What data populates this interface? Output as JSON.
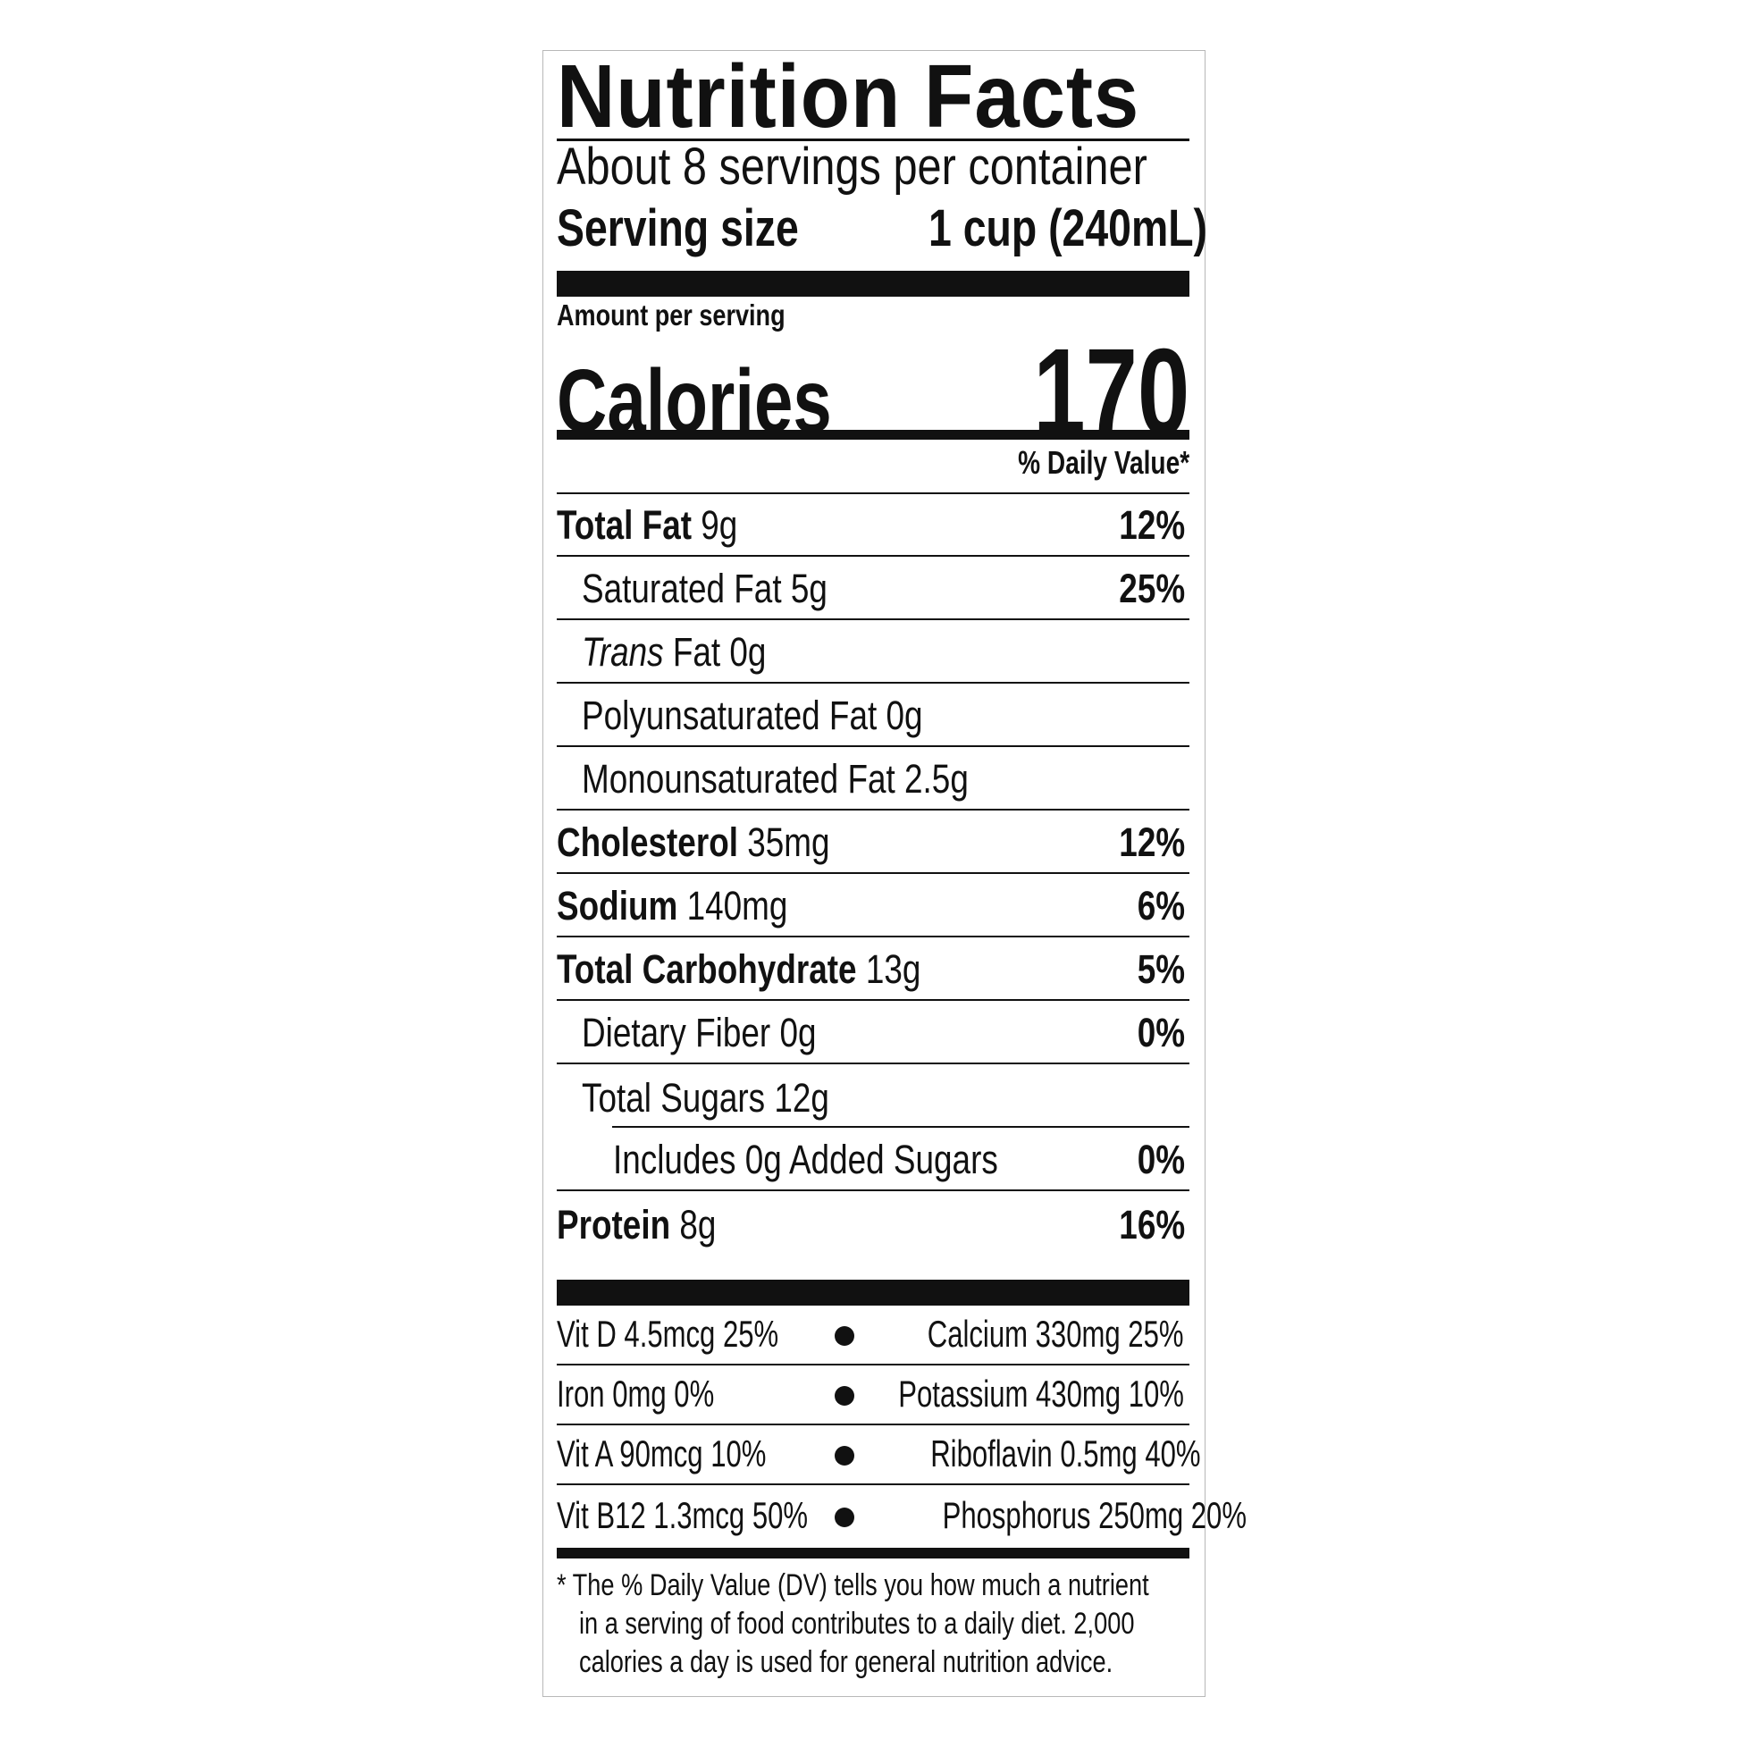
{
  "title": "Nutrition Facts",
  "servings_per_container": "About 8 servings per container",
  "serving_size": {
    "label": "Serving size",
    "value": "1 cup (240mL)"
  },
  "amount_per_serving": "Amount per serving",
  "calories": {
    "label": "Calories",
    "value": "170"
  },
  "daily_value_header": "% Daily Value*",
  "nutrients": [
    {
      "name": "Total Fat",
      "amount": "9g",
      "dv": "12%"
    },
    {
      "name": "Saturated Fat 5g",
      "dv": "25%"
    },
    {
      "name_italic": "Trans",
      "name": " Fat 0g"
    },
    {
      "name": "Polyunsaturated Fat 0g"
    },
    {
      "name": "Monounsaturated Fat 2.5g"
    },
    {
      "name": "Cholesterol",
      "amount": "35mg",
      "dv": "12%"
    },
    {
      "name": "Sodium",
      "amount": "140mg",
      "dv": "6%"
    },
    {
      "name": "Total Carbohydrate",
      "amount": "13g",
      "dv": "5%"
    },
    {
      "name": "Dietary Fiber 0g",
      "dv": "0%"
    },
    {
      "name": "Total Sugars 12g"
    },
    {
      "name": "Includes 0g Added Sugars",
      "dv": "0%"
    },
    {
      "name": "Protein",
      "amount": "8g",
      "dv": "16%"
    }
  ],
  "vitamins": [
    {
      "left": "Vit D 4.5mcg 25%",
      "right": "Calcium 330mg 25%"
    },
    {
      "left": "Iron 0mg 0%",
      "right": "Potassium 430mg 10%"
    },
    {
      "left": "Vit A 90mcg 10%",
      "right": "Riboflavin 0.5mg 40%"
    },
    {
      "left": "Vit B12 1.3mcg 50%",
      "right": "Phosphorus 250mg 20%"
    }
  ],
  "footnote": [
    "* The % Daily Value (DV) tells you how much a nutrient",
    "in a serving of food contributes to a daily diet. 2,000",
    "calories a day is used for general nutrition advice."
  ]
}
